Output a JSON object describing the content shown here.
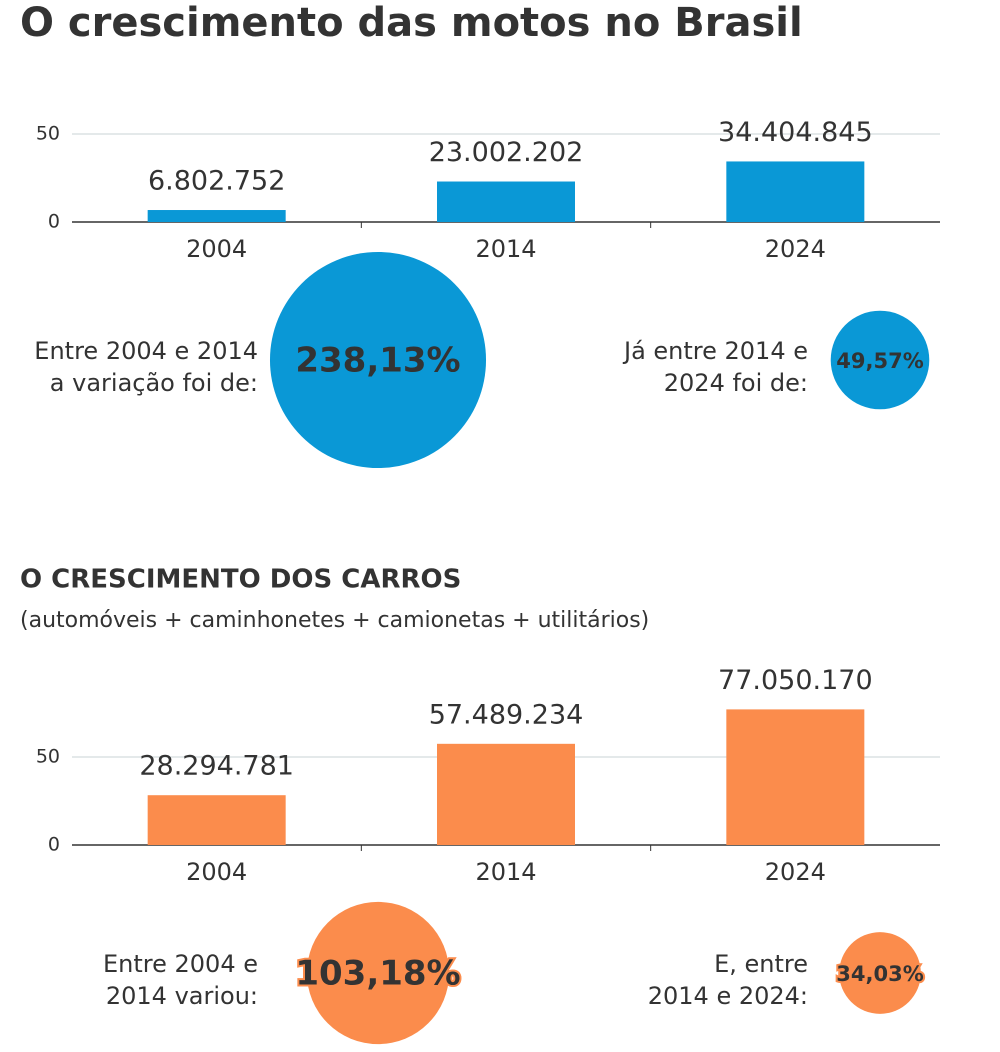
{
  "chart_data": [
    {
      "type": "bar",
      "title": "O crescimento das motos no Brasil",
      "categories": [
        "2004",
        "2014",
        "2024"
      ],
      "values": [
        6.802752,
        23.002202,
        34.404845
      ],
      "value_labels": [
        "6.802.752",
        "23.002.202",
        "34.404.845"
      ],
      "color": "#0a98d6",
      "ylim": [
        0,
        80
      ],
      "yticks": [
        0,
        50
      ],
      "grid": true,
      "changes": [
        {
          "label_lines": [
            "Entre 2004 e 2014",
            "a variação foi de:"
          ],
          "value": 238.13,
          "value_label": "238,13%"
        },
        {
          "label_lines": [
            "Já entre 2014 e",
            "2024 foi de:"
          ],
          "value": 49.57,
          "value_label": "49,57%"
        }
      ]
    },
    {
      "type": "bar",
      "title": "O CRESCIMENTO DOS CARROS",
      "subtitle": "(automóveis + caminhonetes + camionetas + utilitários)",
      "categories": [
        "2004",
        "2014",
        "2024"
      ],
      "values": [
        28.294781,
        57.489234,
        77.05017
      ],
      "value_labels": [
        "28.294.781",
        "57.489.234",
        "77.050.170"
      ],
      "color": "#fb8c4c",
      "ylim": [
        0,
        80
      ],
      "yticks": [
        0,
        50
      ],
      "grid": true,
      "changes": [
        {
          "label_lines": [
            "Entre 2004 e",
            "2014 variou:"
          ],
          "value": 103.18,
          "value_label": "103,18%"
        },
        {
          "label_lines": [
            "E, entre",
            "2014 e 2024:"
          ],
          "value": 34.03,
          "value_label": "34,03%"
        }
      ]
    }
  ]
}
